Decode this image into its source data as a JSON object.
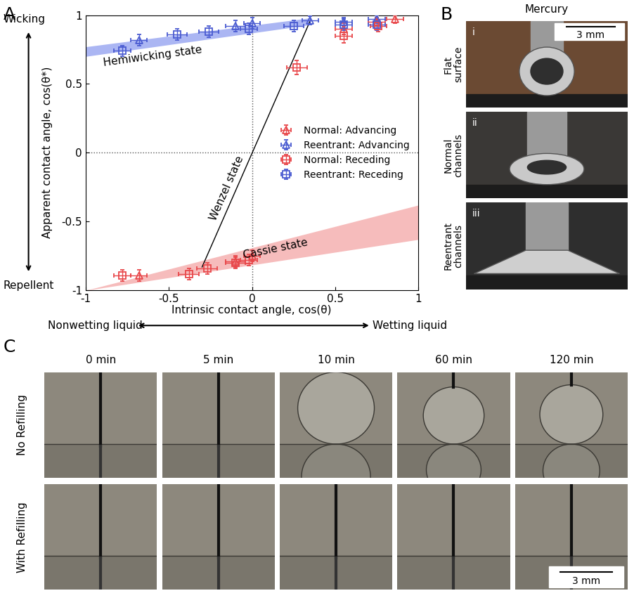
{
  "chart_data": {
    "type": "scatter",
    "panel_label": "A",
    "xlabel": "Intrinsic contact angle, cos(θ)",
    "ylabel": "Apparent contact angle, cos(θ*)",
    "axis_end_labels": {
      "x_low": "Nonwetting liquid",
      "x_high": "Wetting liquid",
      "y_low": "Repellent",
      "y_high": "Wicking"
    },
    "xlim": [
      -1,
      1
    ],
    "ylim": [
      -1,
      1
    ],
    "xticks": [
      -1,
      -0.5,
      0,
      0.5,
      1
    ],
    "yticks": [
      -1,
      -0.5,
      0,
      0.5,
      1
    ],
    "guides": {
      "x": [
        0
      ],
      "y": [
        0
      ]
    },
    "legend": "center right",
    "series": [
      {
        "name": "Normal: Advancing",
        "color": "#e8474a",
        "marker": "triangle",
        "x": [
          -0.68,
          -0.1,
          0.0,
          0.55,
          0.75,
          0.86
        ],
        "y": [
          -0.89,
          -0.79,
          -0.75,
          0.9,
          0.95,
          0.97
        ],
        "xerr": [
          0.05,
          0.06,
          0.05,
          0.05,
          0.05,
          0.05
        ],
        "yerr": [
          0.04,
          0.04,
          0.04,
          0.04,
          0.03,
          0.03
        ]
      },
      {
        "name": "Reentrant: Advancing",
        "color": "#4a5bd1",
        "marker": "triangle",
        "x": [
          -0.68,
          -0.1,
          0.0,
          0.35,
          0.55,
          0.75
        ],
        "y": [
          0.82,
          0.92,
          0.94,
          0.96,
          0.95,
          0.97
        ],
        "xerr": [
          0.05,
          0.06,
          0.05,
          0.05,
          0.05,
          0.05
        ],
        "yerr": [
          0.04,
          0.04,
          0.04,
          0.03,
          0.03,
          0.03
        ]
      },
      {
        "name": "Normal: Receding",
        "color": "#e8474a",
        "marker": "square",
        "x": [
          -0.78,
          -0.38,
          -0.27,
          -0.1,
          -0.02,
          0.27,
          0.55,
          0.76
        ],
        "y": [
          -0.89,
          -0.88,
          -0.84,
          -0.8,
          -0.78,
          0.62,
          0.85,
          0.92
        ],
        "xerr": [
          0.05,
          0.06,
          0.06,
          0.06,
          0.05,
          0.06,
          0.05,
          0.05
        ],
        "yerr": [
          0.04,
          0.04,
          0.04,
          0.04,
          0.04,
          0.05,
          0.05,
          0.04
        ]
      },
      {
        "name": "Reentrant: Receding",
        "color": "#4a5bd1",
        "marker": "square",
        "x": [
          -0.78,
          -0.45,
          -0.26,
          -0.02,
          0.25,
          0.55,
          0.75
        ],
        "y": [
          0.74,
          0.86,
          0.88,
          0.9,
          0.92,
          0.93,
          0.93
        ],
        "xerr": [
          0.05,
          0.06,
          0.06,
          0.05,
          0.06,
          0.05,
          0.05
        ],
        "yerr": [
          0.04,
          0.04,
          0.04,
          0.04,
          0.04,
          0.04,
          0.04
        ]
      }
    ],
    "bands": [
      {
        "label": "Hemiwicking state",
        "color": "#8f9ef0",
        "x": [
          -1,
          0.35
        ],
        "lower": [
          0.7,
          0.93
        ],
        "upper": [
          0.77,
          0.98
        ]
      },
      {
        "label": "Cassie state",
        "color": "#f4a6a6",
        "x": [
          -1,
          1
        ],
        "lower": [
          -1,
          -0.63
        ],
        "upper": [
          -1,
          -0.38
        ]
      }
    ],
    "lines": [
      {
        "label": "Wenzel state",
        "color": "#000000",
        "x": [
          -0.3,
          0.35
        ],
        "y": [
          -0.83,
          0.96
        ]
      }
    ]
  },
  "photos": {
    "B": {
      "panel_label": "B",
      "title": "Mercury",
      "scale_bar": "3 mm",
      "rows": [
        {
          "index": "i",
          "label": "Flat surface"
        },
        {
          "index": "ii",
          "label": "Normal channels"
        },
        {
          "index": "iii",
          "label": "Reentrant channels"
        }
      ]
    },
    "C": {
      "panel_label": "C",
      "scale_bar": "3 mm",
      "columns": [
        "0 min",
        "5 min",
        "10 min",
        "60 min",
        "120 min"
      ],
      "rows": [
        "No Refilling",
        "With Refilling"
      ]
    }
  }
}
